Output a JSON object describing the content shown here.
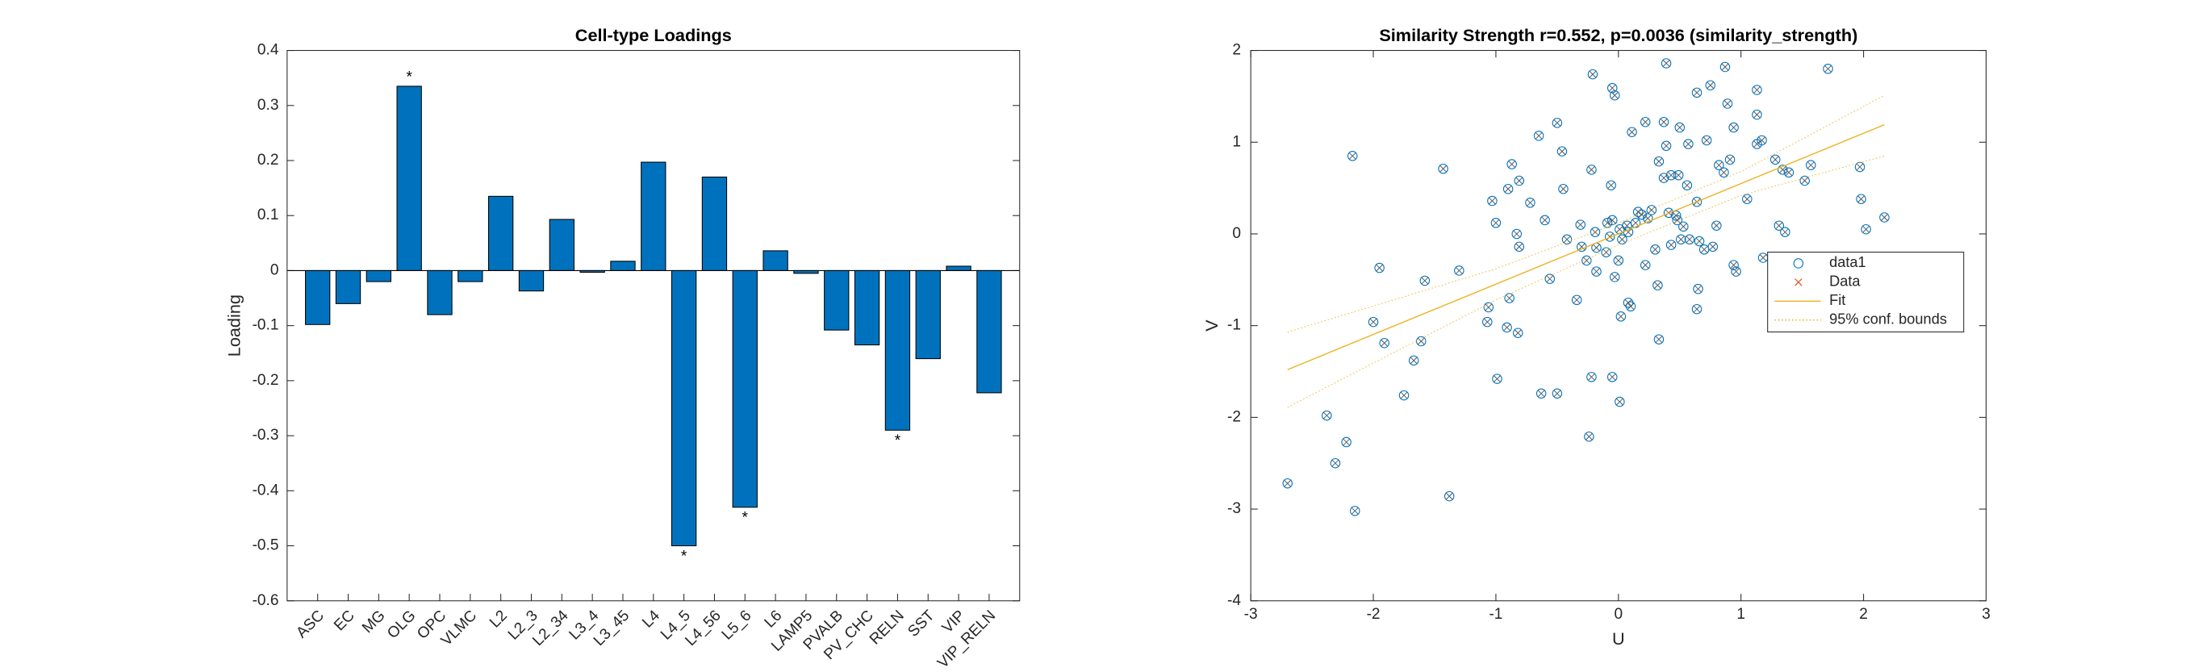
{
  "chart_data": [
    {
      "type": "bar",
      "title": "Cell-type Loadings",
      "ylabel": "Loading",
      "categories": [
        "ASC",
        "EC",
        "MG",
        "OLG",
        "OPC",
        "VLMC",
        "L2",
        "L2_3",
        "L2_34",
        "L3_4",
        "L3_45",
        "L4",
        "L4_5",
        "L4_56",
        "L5_6",
        "L6",
        "LAMP5",
        "PVALB",
        "PV_CHC",
        "RELN",
        "SST",
        "VIP",
        "VIP_RELN"
      ],
      "values": [
        -0.098,
        -0.06,
        -0.02,
        0.335,
        -0.08,
        -0.02,
        0.135,
        -0.037,
        0.093,
        -0.003,
        0.017,
        0.197,
        -0.5,
        0.17,
        -0.43,
        0.036,
        -0.005,
        -0.108,
        -0.135,
        -0.29,
        -0.16,
        0.008,
        -0.222
      ],
      "color": "#0072BD",
      "ylim": [
        -0.6,
        0.4
      ],
      "yticks": [
        -0.6,
        -0.5,
        -0.4,
        -0.3,
        -0.2,
        -0.1,
        0,
        0.1,
        0.2,
        0.3,
        0.4
      ],
      "annotations": [
        {
          "category": "OLG",
          "text": "*"
        },
        {
          "category": "L4_5",
          "text": "*"
        },
        {
          "category": "L5_6",
          "text": "*"
        },
        {
          "category": "RELN",
          "text": "*"
        }
      ]
    },
    {
      "type": "scatter",
      "title": "Similarity Strength r=0.552, p=0.0036 (similarity_strength)",
      "xlabel": "U",
      "ylabel": "V",
      "xlim": [
        -3,
        3
      ],
      "ylim": [
        -4,
        2
      ],
      "xticks": [
        -3,
        -2,
        -1,
        0,
        1,
        2,
        3
      ],
      "yticks": [
        -4,
        -3,
        -2,
        -1,
        0,
        1,
        2
      ],
      "legend": "east",
      "series": [
        {
          "name": "data1",
          "kind": "scatter",
          "marker": "o",
          "color": "#0072BD",
          "x": [
            -2.7,
            -2.38,
            -2.31,
            -2.15,
            -2.17,
            -1.95,
            -2.0,
            -1.91,
            -2.22,
            -1.75,
            -1.67,
            -1.61,
            -1.58,
            -1.3,
            -1.43,
            -1.38,
            -1.03,
            -1.0,
            -0.87,
            -0.81,
            -0.9,
            -0.72,
            -0.65,
            -0.6,
            -0.5,
            -0.56,
            -0.83,
            -0.81,
            -0.89,
            -0.82,
            -0.91,
            -1.06,
            -1.07,
            -0.99,
            -0.63,
            -0.5,
            -0.45,
            -0.46,
            -0.31,
            -0.22,
            -0.21,
            -0.05,
            -0.03,
            0.11,
            0.22,
            0.37,
            0.39,
            0.33,
            0.39,
            0.5,
            0.57,
            0.37,
            0.43,
            0.56,
            0.49,
            0.48,
            0.53,
            0.64,
            0.64,
            0.72,
            0.75,
            0.87,
            0.89,
            0.94,
            0.91,
            0.82,
            0.86,
            1.13,
            1.17,
            1.13,
            1.13,
            1.05,
            1.18,
            1.28,
            1.34,
            1.31,
            1.36,
            1.39,
            1.52,
            1.57,
            1.53,
            1.71,
            1.97,
            1.98,
            2.02,
            2.17,
            0.94,
            0.96,
            0.8,
            0.66,
            0.7,
            0.77,
            0.64,
            0.65,
            0.16,
            0.19,
            0.24,
            0.27,
            0.14,
            0.07,
            0.01,
            -0.07,
            -0.09,
            -0.05,
            -0.1,
            0.03,
            0.08,
            -0.19,
            -0.18,
            -0.26,
            -0.3,
            -0.34,
            -0.18,
            0.0,
            0.02,
            0.08,
            0.1,
            -0.03,
            0.32,
            0.33,
            0.3,
            0.22,
            0.43,
            0.47,
            0.41,
            0.51,
            0.58,
            -0.05,
            0.01,
            -0.22,
            -0.24,
            -0.42,
            -0.06
          ],
          "y": [
            -2.72,
            -1.98,
            -2.5,
            -3.02,
            0.85,
            -0.37,
            -0.96,
            -1.19,
            -2.27,
            -1.76,
            -1.38,
            -1.17,
            -0.51,
            -0.4,
            0.71,
            -2.86,
            0.36,
            0.12,
            0.76,
            0.58,
            0.49,
            0.34,
            1.07,
            0.15,
            1.21,
            -0.49,
            0.0,
            -0.14,
            -0.7,
            -1.08,
            -1.02,
            -0.8,
            -0.96,
            -1.58,
            -1.74,
            -1.74,
            0.49,
            0.9,
            0.1,
            0.7,
            1.74,
            1.59,
            1.51,
            1.11,
            1.22,
            1.22,
            1.86,
            0.79,
            0.96,
            1.16,
            0.98,
            0.61,
            0.64,
            0.53,
            0.64,
            0.15,
            0.08,
            0.35,
            1.54,
            1.02,
            1.62,
            1.82,
            1.42,
            1.16,
            0.81,
            0.75,
            0.67,
            0.98,
            1.02,
            1.57,
            1.3,
            0.38,
            -0.26,
            0.81,
            0.7,
            0.09,
            0.02,
            0.67,
            0.58,
            0.75,
            -0.32,
            1.8,
            0.73,
            0.38,
            0.05,
            0.18,
            -0.34,
            -0.41,
            0.09,
            -0.08,
            -0.17,
            -0.14,
            -0.82,
            -0.6,
            0.24,
            0.21,
            0.17,
            0.26,
            0.12,
            0.09,
            0.05,
            -0.03,
            0.12,
            0.15,
            -0.2,
            -0.06,
            0.02,
            0.02,
            -0.15,
            -0.29,
            -0.14,
            -0.72,
            -0.41,
            -0.29,
            -0.9,
            -0.75,
            -0.79,
            -0.47,
            -0.56,
            -1.15,
            -0.17,
            -0.34,
            -0.12,
            0.2,
            0.23,
            -0.06,
            -0.06,
            -1.56,
            -1.83,
            -1.56,
            -2.21,
            -0.06,
            0.53
          ]
        },
        {
          "name": "Data",
          "kind": "overlay",
          "marker": "x",
          "color": "#D95319"
        },
        {
          "name": "Fit",
          "kind": "line",
          "color": "#EDB120",
          "x": [
            -2.7,
            2.17
          ],
          "y": [
            -1.48,
            1.19
          ]
        },
        {
          "name": "95% conf. bounds",
          "kind": "band",
          "color": "#EDB120",
          "x": [
            -2.7,
            -1,
            0,
            1,
            2.17
          ],
          "upper": [
            -1.07,
            -0.38,
            0.12,
            0.68,
            1.51
          ],
          "lower": [
            -1.89,
            -0.72,
            -0.12,
            0.42,
            0.85
          ]
        }
      ]
    }
  ]
}
